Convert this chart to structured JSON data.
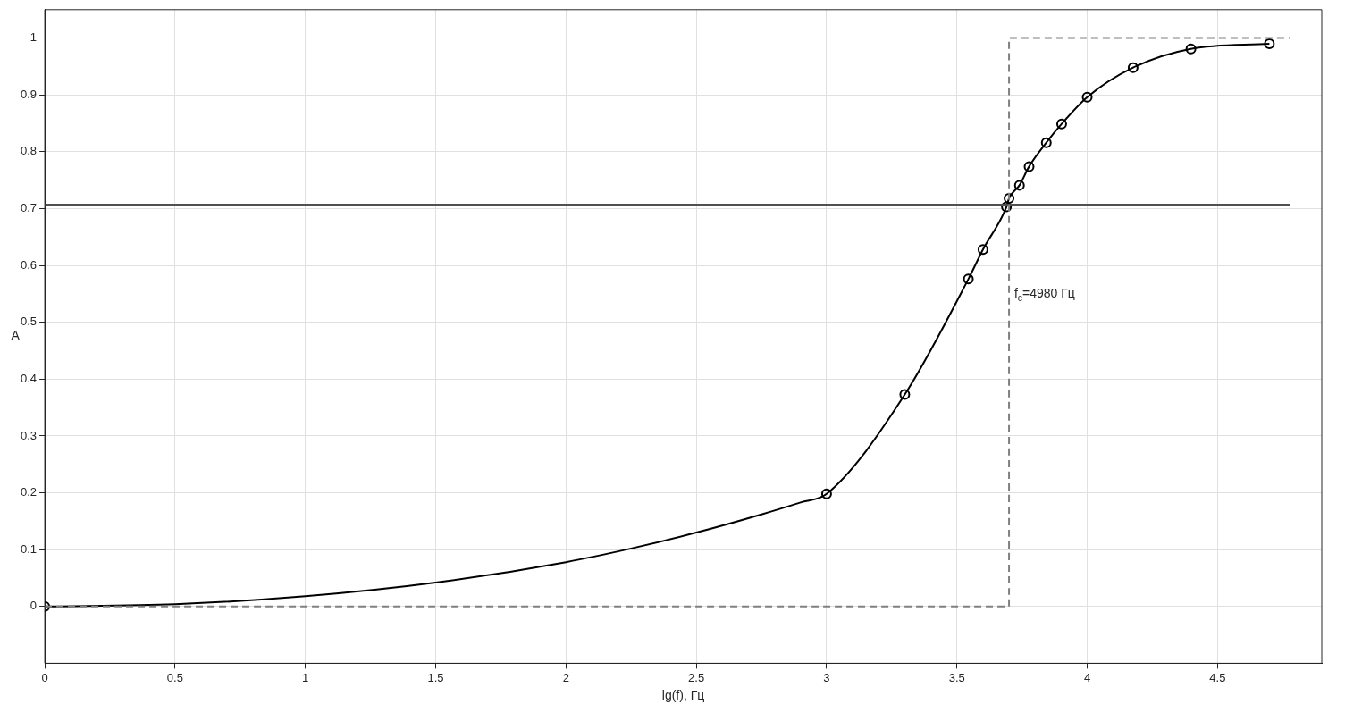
{
  "chart_data": {
    "type": "line",
    "xlabel": "lg(f), Гц",
    "ylabel": "A",
    "xlim": [
      0,
      4.9
    ],
    "ylim": [
      -0.1,
      1.05
    ],
    "xticks": [
      0,
      0.5,
      1,
      1.5,
      2,
      2.5,
      3,
      3.5,
      4,
      4.5
    ],
    "yticks": [
      0,
      0.1,
      0.2,
      0.3,
      0.4,
      0.5,
      0.6,
      0.7,
      0.8,
      0.9,
      1
    ],
    "grid": true,
    "legend": false,
    "annotations": [
      {
        "text": "f$_{c}$=4980 Гц",
        "x": 3.72,
        "y": 0.55
      }
    ],
    "series": [
      {
        "type": "line",
        "color": "#808080",
        "line_style": "dashed",
        "marker": "none",
        "x": [
          0,
          3.7,
          3.7,
          4.78
        ],
        "values": [
          0,
          0,
          1,
          1
        ]
      },
      {
        "type": "line",
        "color": "#505050",
        "line_style": "solid",
        "marker": "none",
        "x": [
          0,
          4.78
        ],
        "values": [
          0.707,
          0.707
        ]
      },
      {
        "type": "line",
        "color": "#000000",
        "line_style": "solid",
        "marker": "none",
        "x": [
          0,
          0.5,
          1,
          1.5,
          2,
          2.25,
          2.5,
          2.75,
          2.9,
          3,
          3.3,
          3.544,
          3.6,
          3.69,
          3.7,
          3.74,
          3.777,
          3.843,
          3.902,
          4,
          4.176,
          4.398,
          4.699
        ],
        "values": [
          0,
          0.004,
          0.018,
          0.042,
          0.078,
          0.102,
          0.13,
          0.162,
          0.183,
          0.198,
          0.373,
          0.576,
          0.628,
          0.703,
          0.718,
          0.741,
          0.774,
          0.816,
          0.849,
          0.896,
          0.948,
          0.981,
          0.99
        ]
      },
      {
        "type": "scatter",
        "color": "#000000",
        "marker": "circle",
        "x": [
          0,
          3,
          3.3,
          3.544,
          3.6,
          3.69,
          3.7,
          3.74,
          3.777,
          3.843,
          3.902,
          4,
          4.176,
          4.398,
          4.699
        ],
        "values": [
          0,
          0.198,
          0.373,
          0.576,
          0.628,
          0.703,
          0.718,
          0.741,
          0.774,
          0.816,
          0.849,
          0.896,
          0.948,
          0.981,
          0.99
        ]
      }
    ]
  }
}
